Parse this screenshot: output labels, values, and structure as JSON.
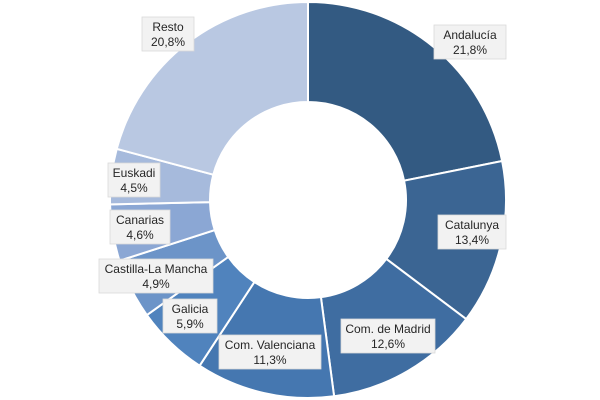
{
  "chart_data": {
    "type": "pie",
    "style": "donut",
    "title": "",
    "categories": [
      "Andalucía",
      "Catalunya",
      "Com. de Madrid",
      "Com. Valenciana",
      "Galicia",
      "Castilla-La Mancha",
      "Canarias",
      "Euskadi",
      "Resto"
    ],
    "values": [
      21.8,
      13.4,
      12.6,
      11.3,
      5.9,
      4.9,
      4.6,
      4.5,
      20.8
    ],
    "value_labels": [
      "21,8%",
      "13,4%",
      "12,6%",
      "11,3%",
      "5,9%",
      "4,9%",
      "4,6%",
      "4,5%",
      "20,8%"
    ],
    "colors": [
      "#335a82",
      "#3b6593",
      "#3f6da1",
      "#4577b0",
      "#5083bd",
      "#6c94c8",
      "#8ba7d4",
      "#a6badc",
      "#b9c8e2"
    ],
    "legend": "none",
    "data_labels": "outside-callout-boxes"
  }
}
